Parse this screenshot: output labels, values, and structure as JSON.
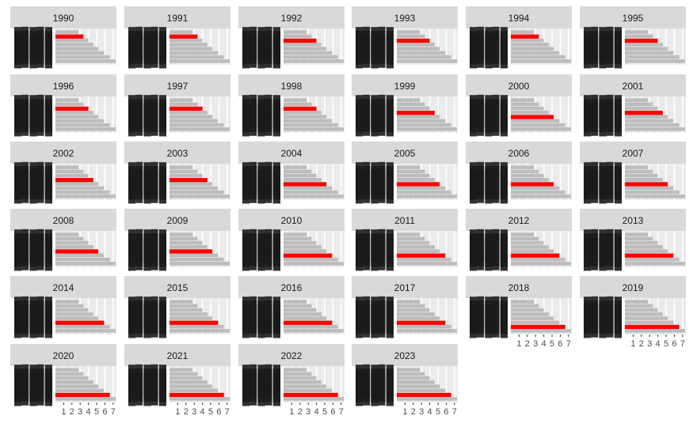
{
  "chart_data": {
    "type": "bar",
    "orientation": "horizontal",
    "facet_by": "year",
    "xlim": [
      0,
      7.4
    ],
    "xticks": [
      "1",
      "2",
      "3",
      "4",
      "5",
      "6",
      "7"
    ],
    "grid": true,
    "legend": "none",
    "colors": {
      "panel_bg": "#ebebeb",
      "strip_bg": "#d9d9d9",
      "bar_default": "#bdbdbd",
      "bar_highlight": "#ff0000",
      "gridline": "#ffffff"
    },
    "panels": [
      {
        "year": "1990",
        "values": [
          2.8,
          3.4,
          4.0,
          4.6,
          5.2,
          5.9,
          6.6,
          7.3
        ],
        "highlight_index": 1
      },
      {
        "year": "1991",
        "values": [
          2.8,
          3.4,
          4.0,
          4.6,
          5.2,
          5.9,
          6.6,
          7.3
        ],
        "highlight_index": 1
      },
      {
        "year": "1992",
        "values": [
          2.8,
          3.4,
          4.0,
          4.6,
          5.2,
          5.9,
          6.6,
          7.3
        ],
        "highlight_index": 2
      },
      {
        "year": "1993",
        "values": [
          2.8,
          3.4,
          4.0,
          4.6,
          5.2,
          5.9,
          6.6,
          7.3
        ],
        "highlight_index": 2
      },
      {
        "year": "1994",
        "values": [
          2.8,
          3.4,
          4.0,
          4.6,
          5.2,
          5.9,
          6.6,
          7.3
        ],
        "highlight_index": 1
      },
      {
        "year": "1995",
        "values": [
          2.8,
          3.4,
          4.0,
          4.6,
          5.2,
          5.9,
          6.6,
          7.3
        ],
        "highlight_index": 2
      },
      {
        "year": "1996",
        "values": [
          2.8,
          3.4,
          4.0,
          4.6,
          5.2,
          5.9,
          6.6,
          7.3
        ],
        "highlight_index": 2
      },
      {
        "year": "1997",
        "values": [
          2.8,
          3.4,
          4.0,
          4.6,
          5.2,
          5.9,
          6.6,
          7.3
        ],
        "highlight_index": 2
      },
      {
        "year": "1998",
        "values": [
          2.8,
          3.4,
          4.0,
          4.6,
          5.2,
          5.9,
          6.6,
          7.3
        ],
        "highlight_index": 2
      },
      {
        "year": "1999",
        "values": [
          2.8,
          3.4,
          4.0,
          4.6,
          5.2,
          5.9,
          6.6,
          7.3
        ],
        "highlight_index": 3
      },
      {
        "year": "2000",
        "values": [
          2.8,
          3.4,
          4.0,
          4.6,
          5.2,
          5.9,
          6.6,
          7.3
        ],
        "highlight_index": 4
      },
      {
        "year": "2001",
        "values": [
          2.8,
          3.4,
          4.0,
          4.6,
          5.2,
          5.9,
          6.6,
          7.3
        ],
        "highlight_index": 3
      },
      {
        "year": "2002",
        "values": [
          2.8,
          3.4,
          4.0,
          4.6,
          5.2,
          5.9,
          6.6,
          7.3
        ],
        "highlight_index": 3
      },
      {
        "year": "2003",
        "values": [
          2.8,
          3.4,
          4.0,
          4.6,
          5.2,
          5.9,
          6.6,
          7.3
        ],
        "highlight_index": 3
      },
      {
        "year": "2004",
        "values": [
          2.8,
          3.4,
          4.0,
          4.6,
          5.2,
          5.9,
          6.6,
          7.3
        ],
        "highlight_index": 4
      },
      {
        "year": "2005",
        "values": [
          2.8,
          3.4,
          4.0,
          4.6,
          5.2,
          5.9,
          6.6,
          7.3
        ],
        "highlight_index": 4
      },
      {
        "year": "2006",
        "values": [
          2.8,
          3.4,
          4.0,
          4.6,
          5.2,
          5.9,
          6.6,
          7.3
        ],
        "highlight_index": 4
      },
      {
        "year": "2007",
        "values": [
          2.8,
          3.4,
          4.0,
          4.6,
          5.2,
          5.9,
          6.6,
          7.3
        ],
        "highlight_index": 4
      },
      {
        "year": "2008",
        "values": [
          2.8,
          3.4,
          4.0,
          4.6,
          5.2,
          5.9,
          6.6,
          7.3
        ],
        "highlight_index": 4
      },
      {
        "year": "2009",
        "values": [
          2.8,
          3.4,
          4.0,
          4.6,
          5.2,
          5.9,
          6.6,
          7.3
        ],
        "highlight_index": 4
      },
      {
        "year": "2010",
        "values": [
          2.8,
          3.4,
          4.0,
          4.6,
          5.2,
          5.9,
          6.6,
          7.3
        ],
        "highlight_index": 5
      },
      {
        "year": "2011",
        "values": [
          2.8,
          3.4,
          4.0,
          4.6,
          5.2,
          5.9,
          6.6,
          7.3
        ],
        "highlight_index": 5
      },
      {
        "year": "2012",
        "values": [
          2.8,
          3.4,
          4.0,
          4.6,
          5.2,
          5.9,
          6.6,
          7.3
        ],
        "highlight_index": 5
      },
      {
        "year": "2013",
        "values": [
          2.8,
          3.4,
          4.0,
          4.6,
          5.2,
          5.9,
          6.6,
          7.3
        ],
        "highlight_index": 5
      },
      {
        "year": "2014",
        "values": [
          2.8,
          3.4,
          4.0,
          4.6,
          5.2,
          5.9,
          6.6,
          7.3
        ],
        "highlight_index": 5
      },
      {
        "year": "2015",
        "values": [
          2.8,
          3.4,
          4.0,
          4.6,
          5.2,
          5.9,
          6.6,
          7.3
        ],
        "highlight_index": 5
      },
      {
        "year": "2016",
        "values": [
          2.8,
          3.4,
          4.0,
          4.6,
          5.2,
          5.9,
          6.6,
          7.3
        ],
        "highlight_index": 5
      },
      {
        "year": "2017",
        "values": [
          2.8,
          3.4,
          4.0,
          4.6,
          5.2,
          5.9,
          6.6,
          7.3
        ],
        "highlight_index": 5
      },
      {
        "year": "2018",
        "values": [
          2.8,
          3.4,
          4.0,
          4.6,
          5.2,
          5.9,
          6.6,
          7.3
        ],
        "highlight_index": 6
      },
      {
        "year": "2019",
        "values": [
          2.8,
          3.4,
          4.0,
          4.6,
          5.2,
          5.9,
          6.6,
          7.3
        ],
        "highlight_index": 6
      },
      {
        "year": "2020",
        "values": [
          2.8,
          3.4,
          4.0,
          4.6,
          5.2,
          5.9,
          6.6,
          7.3
        ],
        "highlight_index": 6
      },
      {
        "year": "2021",
        "values": [
          2.8,
          3.4,
          4.0,
          4.6,
          5.2,
          5.9,
          6.6,
          7.3
        ],
        "highlight_index": 6
      },
      {
        "year": "2022",
        "values": [
          2.8,
          3.4,
          4.0,
          4.6,
          5.2,
          5.9,
          6.6,
          7.3
        ],
        "highlight_index": 6
      },
      {
        "year": "2023",
        "values": [
          2.8,
          3.4,
          4.0,
          4.6,
          5.2,
          5.9,
          6.6,
          7.3
        ],
        "highlight_index": 6
      }
    ]
  }
}
